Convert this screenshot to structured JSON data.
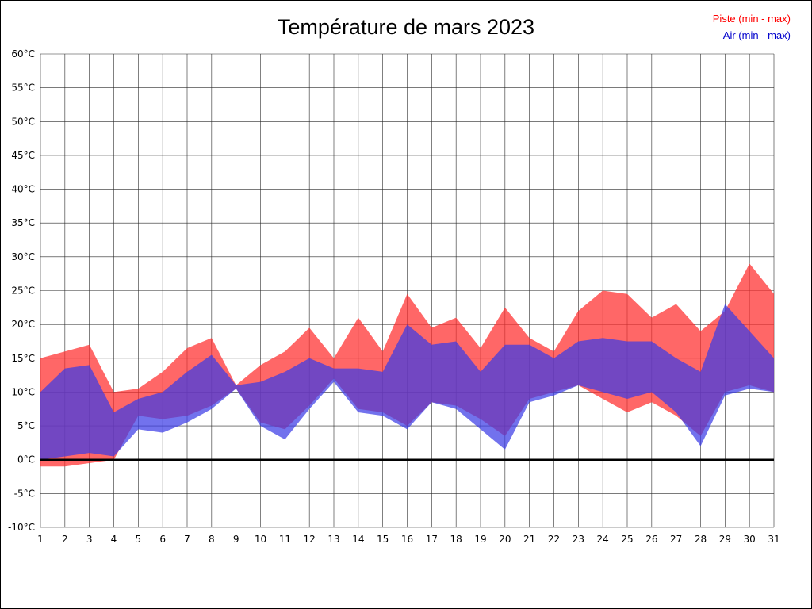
{
  "title": "Température de mars 2023",
  "legend": {
    "piste": "Piste (min - max)",
    "air": "Air (min - max)"
  },
  "colors": {
    "piste_text": "#ff0000",
    "air_text": "#0000cc",
    "piste_fill": "rgba(255,45,45,0.72)",
    "air_fill": "rgba(60,60,230,0.72)",
    "grid": "#2a2a2a",
    "zero_line": "#000000",
    "tick_text": "#000000"
  },
  "chart_data": {
    "type": "area",
    "title": "Température de mars 2023",
    "xlabel": "",
    "ylabel": "",
    "ylabel_suffix": "°C",
    "ylim": [
      -10,
      60
    ],
    "ytick_step": 5,
    "grid": true,
    "legend_position": "top-right",
    "x": [
      1,
      2,
      3,
      4,
      5,
      6,
      7,
      8,
      9,
      10,
      11,
      12,
      13,
      14,
      15,
      16,
      17,
      18,
      19,
      20,
      21,
      22,
      23,
      24,
      25,
      26,
      27,
      28,
      29,
      30,
      31
    ],
    "series": [
      {
        "name": "Piste (min - max)",
        "key": "piste-band",
        "fill": "rgba(255,45,45,0.72)",
        "min": [
          -1,
          -1,
          -0.5,
          0,
          6.5,
          6,
          6.5,
          8,
          10.5,
          5.5,
          4.5,
          8,
          12,
          7.5,
          7,
          5,
          8.5,
          8,
          6,
          3.5,
          9,
          10,
          11,
          9,
          7,
          8.5,
          6.5,
          3.5,
          10,
          11,
          10
        ],
        "max": [
          15,
          16,
          17,
          10,
          10.5,
          13,
          16.5,
          18,
          11,
          14,
          16,
          19.5,
          15,
          21,
          16,
          24.5,
          19.5,
          21,
          16.5,
          22.5,
          18,
          16,
          22,
          25,
          24.5,
          21,
          23,
          19,
          22,
          29,
          24.5
        ]
      },
      {
        "name": "Air (min - max)",
        "key": "air-band",
        "fill": "rgba(60,60,230,0.72)",
        "min": [
          0,
          0.5,
          1,
          0.5,
          4.5,
          4,
          5.5,
          7.5,
          10.5,
          5,
          3,
          7.5,
          11.5,
          7,
          6.5,
          4.5,
          8.5,
          7.5,
          4.5,
          1.5,
          8.5,
          9.5,
          11,
          10,
          9,
          10,
          7,
          2,
          9.5,
          10.5,
          10
        ],
        "max": [
          10,
          13.5,
          14,
          7,
          9,
          10,
          13,
          15.5,
          11,
          11.5,
          13,
          15,
          13.5,
          13.5,
          13,
          20,
          17,
          17.5,
          13,
          17,
          17,
          15,
          17.5,
          18,
          17.5,
          17.5,
          15,
          13,
          23,
          19,
          15
        ]
      }
    ]
  }
}
